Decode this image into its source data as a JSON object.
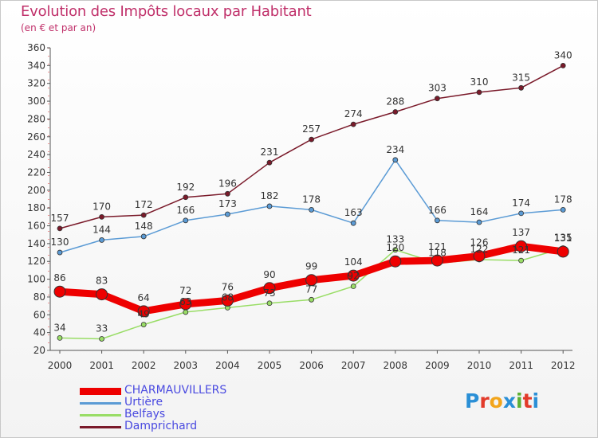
{
  "title": "Evolution des Impôts locaux par Habitant",
  "subtitle": "(en € et par an)",
  "logo": {
    "text": "Proxiti",
    "letter_colors": [
      "#2a8fd6",
      "#e23b2a",
      "#f2a51c",
      "#2a8fd6",
      "#5bb033",
      "#e23b2a",
      "#2a8fd6"
    ]
  },
  "chart_data": {
    "type": "line",
    "x": [
      "2000",
      "2001",
      "2002",
      "2003",
      "2004",
      "2005",
      "2006",
      "2007",
      "2008",
      "2009",
      "2010",
      "2011",
      "2012"
    ],
    "ylim": [
      20,
      360
    ],
    "yticks": [
      "20",
      "40",
      "60",
      "80",
      "100",
      "120",
      "140",
      "160",
      "180",
      "200",
      "220",
      "240",
      "260",
      "280",
      "300",
      "320",
      "340",
      "360"
    ],
    "grid": false,
    "legend_position": "bottom-left",
    "series": [
      {
        "name": "CHARMAUVILLERS",
        "color": "#ee0000",
        "values": [
          86,
          83,
          64,
          72,
          76,
          90,
          99,
          104,
          120,
          121,
          126,
          137,
          131
        ]
      },
      {
        "name": "Urtière",
        "color": "#5b9bd5",
        "values": [
          130,
          144,
          148,
          166,
          173,
          182,
          178,
          163,
          234,
          166,
          164,
          174,
          178
        ]
      },
      {
        "name": "Belfays",
        "color": "#99dd66",
        "values": [
          34,
          33,
          49,
          63,
          68,
          73,
          77,
          92,
          133,
          118,
          122,
          121,
          135
        ]
      },
      {
        "name": "Damprichard",
        "color": "#7a1a2a",
        "values": [
          157,
          170,
          172,
          192,
          196,
          231,
          257,
          274,
          288,
          303,
          310,
          315,
          340
        ]
      }
    ]
  }
}
